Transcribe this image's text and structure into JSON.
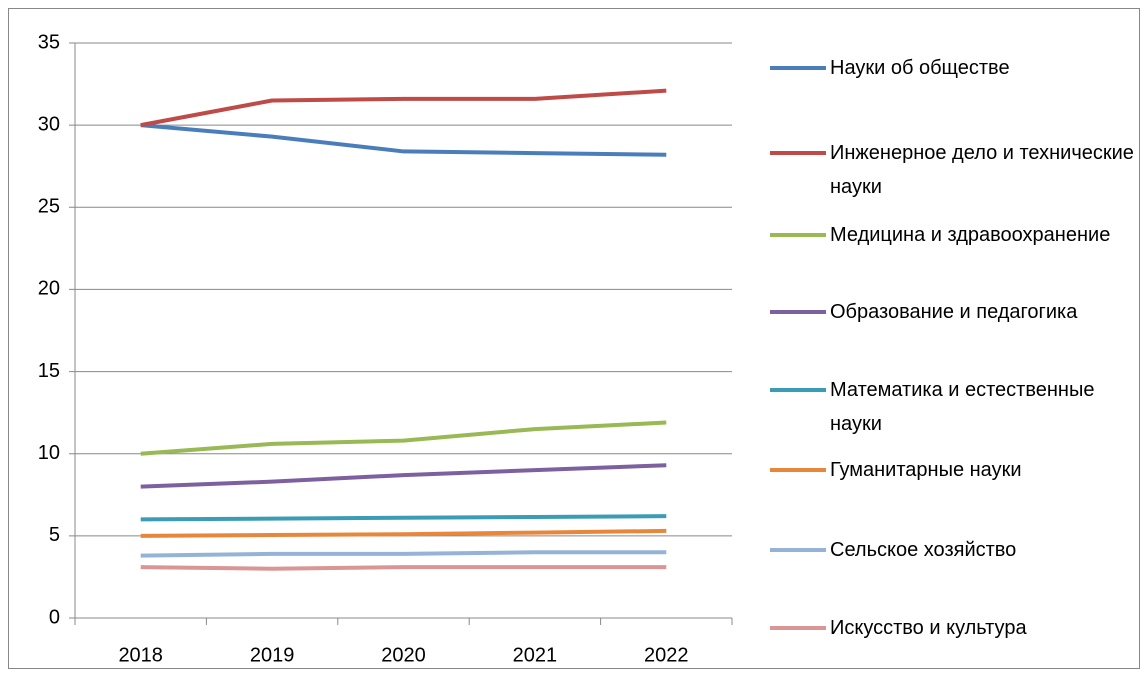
{
  "chart_data": {
    "type": "line",
    "categories": [
      "2018",
      "2019",
      "2020",
      "2021",
      "2022"
    ],
    "series": [
      {
        "name": "Науки об обществе",
        "color": "#4a7ebb",
        "values": [
          30,
          29.3,
          28.4,
          28.3,
          28.2
        ]
      },
      {
        "name": "Инженерное дело и технические науки",
        "color": "#be4b48",
        "values": [
          30,
          31.5,
          31.6,
          31.6,
          32.1
        ]
      },
      {
        "name": "Медицина и здравоохранение",
        "color": "#98b954",
        "values": [
          10,
          10.6,
          10.8,
          11.5,
          11.9
        ]
      },
      {
        "name": "Образование и педагогика",
        "color": "#7d60a0",
        "values": [
          8,
          8.3,
          8.7,
          9.0,
          9.3
        ]
      },
      {
        "name": "Математика и естественные науки",
        "color": "#3b9cb5",
        "values": [
          6,
          6.05,
          6.1,
          6.15,
          6.2
        ]
      },
      {
        "name": "Гуманитарные науки",
        "color": "#e8873c",
        "values": [
          5,
          5.05,
          5.1,
          5.2,
          5.3
        ]
      },
      {
        "name": "Сельское хозяйство",
        "color": "#95b3d7",
        "values": [
          3.8,
          3.9,
          3.9,
          4.0,
          4.0
        ]
      },
      {
        "name": "Искусство и культура",
        "color": "#d99694",
        "values": [
          3.1,
          3.0,
          3.1,
          3.1,
          3.1
        ]
      }
    ],
    "ylim": [
      0,
      35
    ],
    "yticks": [
      0,
      5,
      10,
      15,
      20,
      25,
      30,
      35
    ],
    "grid": true,
    "legend": "right"
  }
}
